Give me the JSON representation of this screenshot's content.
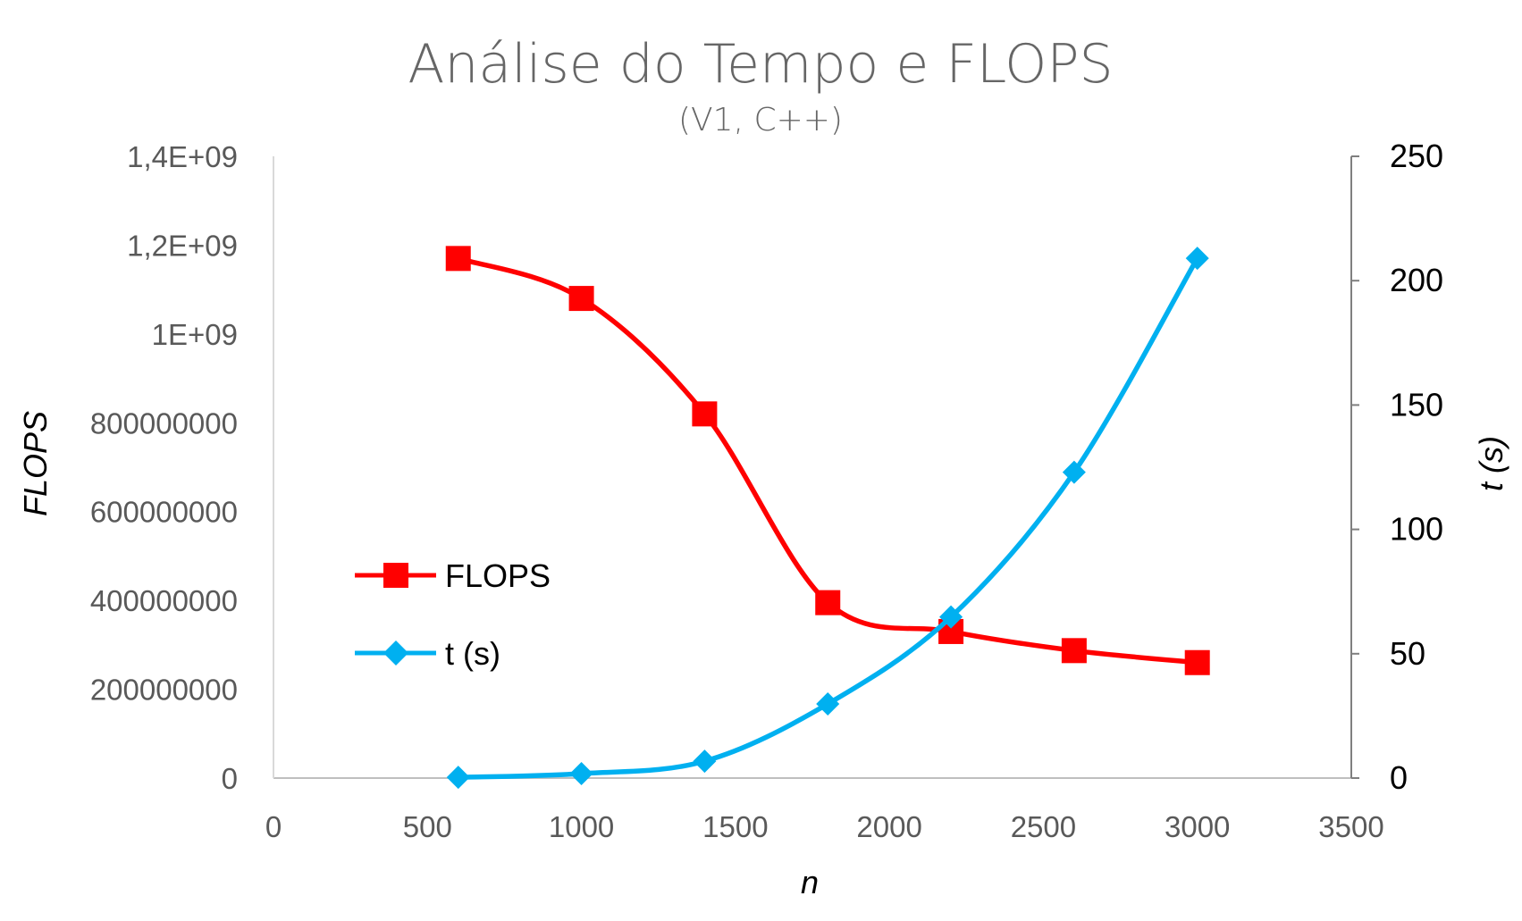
{
  "chart_data": {
    "type": "line",
    "title": "Análise do Tempo e FLOPS",
    "subtitle": "(V1, C++)",
    "xlabel": "n",
    "ylabel_left": "FLOPS",
    "ylabel_right": "t (s)",
    "xlim": [
      0,
      3500
    ],
    "x_ticks": [
      "0",
      "500",
      "1000",
      "1500",
      "2000",
      "2500",
      "3000",
      "3500"
    ],
    "ylim_left": [
      0,
      1400000000
    ],
    "y_ticks_left": [
      "0",
      "200000000",
      "400000000",
      "600000000",
      "800000000",
      "1E+09",
      "1,2E+09",
      "1,4E+09"
    ],
    "ylim_right": [
      0,
      250
    ],
    "y_ticks_right": [
      "0",
      "50",
      "100",
      "150",
      "200",
      "250"
    ],
    "grid": false,
    "legend_position": "center-left",
    "smoothed": true,
    "series": [
      {
        "name": "FLOPS",
        "axis": "left",
        "color": "#ff0000",
        "marker": "square",
        "x": [
          600,
          1000,
          1400,
          1800,
          2200,
          2600,
          3000
        ],
        "y": [
          1170000000,
          1080000000,
          820000000,
          395000000,
          330000000,
          287000000,
          260000000
        ]
      },
      {
        "name": "t (s)",
        "axis": "right",
        "color": "#00b0f0",
        "marker": "diamond",
        "x": [
          600,
          1000,
          1400,
          1800,
          2200,
          2600,
          3000
        ],
        "y": [
          0.3,
          1.8,
          6.8,
          29.8,
          64.8,
          123,
          209
        ]
      }
    ]
  }
}
